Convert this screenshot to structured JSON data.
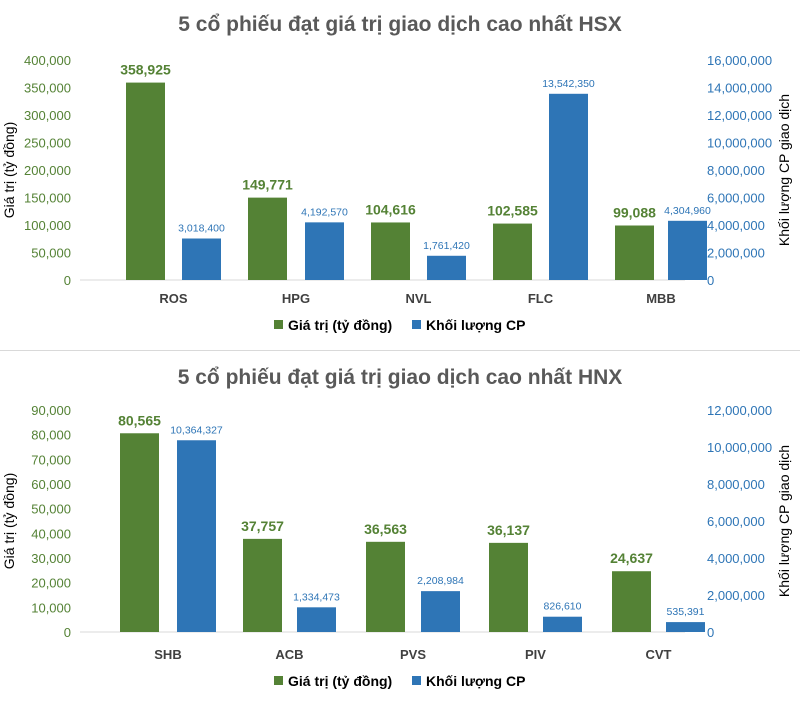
{
  "colors": {
    "green": "#548235",
    "blue": "#2e75b6",
    "title": "#595959"
  },
  "chart_data": [
    {
      "type": "bar",
      "title": "5 cổ phiếu đạt giá trị giao dịch cao nhất HSX",
      "categories": [
        "ROS",
        "HPG",
        "NVL",
        "FLC",
        "MBB"
      ],
      "ylabel_left": "Giá trị (tỷ đồng)",
      "ylabel_right": "Khối lượng CP giao dịch",
      "ylim_left": [
        0,
        400000
      ],
      "yticks_left": [
        "0",
        "50,000",
        "100,000",
        "150,000",
        "200,000",
        "250,000",
        "300,000",
        "350,000",
        "400,000"
      ],
      "ylim_right": [
        0,
        16000000
      ],
      "yticks_right": [
        "0",
        "2,000,000",
        "4,000,000",
        "6,000,000",
        "8,000,000",
        "10,000,000",
        "12,000,000",
        "14,000,000",
        "16,000,000"
      ],
      "series": [
        {
          "name": "Giá trị (tỷ đồng)",
          "axis": "left",
          "color": "#548235",
          "values": [
            358925,
            149771,
            104616,
            102585,
            99088
          ],
          "labels": [
            "358,925",
            "149,771",
            "104,616",
            "102,585",
            "99,088"
          ]
        },
        {
          "name": "Khối lượng CP",
          "axis": "right",
          "color": "#2e75b6",
          "values": [
            3018400,
            4192570,
            1761420,
            13542350,
            4304960
          ],
          "labels": [
            "3,018,400",
            "4,192,570",
            "1,761,420",
            "13,542,350",
            "4,304,960"
          ]
        }
      ],
      "grid": false,
      "legend": "bottom"
    },
    {
      "type": "bar",
      "title": "5 cổ phiếu đạt giá trị giao dịch cao nhất HNX",
      "categories": [
        "SHB",
        "ACB",
        "PVS",
        "PIV",
        "CVT"
      ],
      "ylabel_left": "Giá trị (tỷ đồng)",
      "ylabel_right": "Khối lượng CP giao dịch",
      "ylim_left": [
        0,
        90000
      ],
      "yticks_left": [
        "0",
        "10,000",
        "20,000",
        "30,000",
        "40,000",
        "50,000",
        "60,000",
        "70,000",
        "80,000",
        "90,000"
      ],
      "ylim_right": [
        0,
        12000000
      ],
      "yticks_right": [
        "0",
        "2,000,000",
        "4,000,000",
        "6,000,000",
        "8,000,000",
        "10,000,000",
        "12,000,000"
      ],
      "series": [
        {
          "name": "Giá trị (tỷ đồng)",
          "axis": "left",
          "color": "#548235",
          "values": [
            80565,
            37757,
            36563,
            36137,
            24637
          ],
          "labels": [
            "80,565",
            "37,757",
            "36,563",
            "36,137",
            "24,637"
          ]
        },
        {
          "name": "Khối lượng CP",
          "axis": "right",
          "color": "#2e75b6",
          "values": [
            10364327,
            1334473,
            2208984,
            826610,
            535391
          ],
          "labels": [
            "10,364,327",
            "1,334,473",
            "2,208,984",
            "826,610",
            "535,391"
          ]
        }
      ],
      "grid": false,
      "legend": "bottom"
    }
  ]
}
